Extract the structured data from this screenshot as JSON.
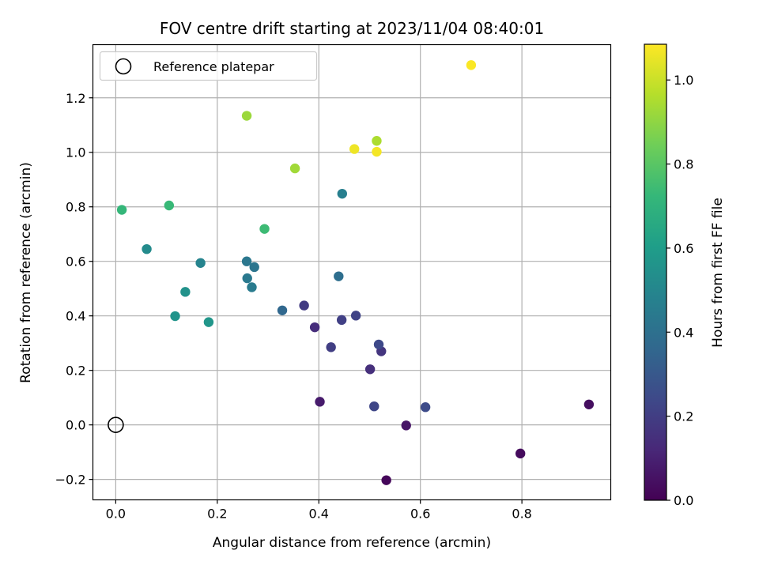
{
  "chart_data": {
    "type": "scatter",
    "title": "FOV centre drift starting at 2023/11/04 08:40:01",
    "xlabel": "Angular distance from reference (arcmin)",
    "ylabel": "Rotation from reference (arcmin)",
    "xlim": [
      -0.045,
      0.975
    ],
    "ylim": [
      -0.275,
      1.395
    ],
    "xticks": [
      0.0,
      0.2,
      0.4,
      0.6,
      0.8
    ],
    "xtick_labels": [
      "0.0",
      "0.2",
      "0.4",
      "0.6",
      "0.8"
    ],
    "yticks": [
      -0.2,
      0.0,
      0.2,
      0.4,
      0.6,
      0.8,
      1.0,
      1.2
    ],
    "ytick_labels": [
      "−0.2",
      "0.0",
      "0.2",
      "0.4",
      "0.6",
      "0.8",
      "1.0",
      "1.2"
    ],
    "grid": true,
    "legend": {
      "location": "upper-left",
      "entries": [
        {
          "label": "Reference platepar",
          "marker": "hollow-circle"
        }
      ]
    },
    "reference_point": {
      "x": 0.0,
      "y": 0.0
    },
    "colorbar": {
      "label": "Hours from first FF file",
      "colormap": "viridis",
      "range": [
        0.0,
        1.085
      ],
      "ticks": [
        0.0,
        0.2,
        0.4,
        0.6,
        0.8,
        1.0
      ],
      "tick_labels": [
        "0.0",
        "0.2",
        "0.4",
        "0.6",
        "0.8",
        "1.0"
      ]
    },
    "colormap_stops": [
      "#440154",
      "#482878",
      "#3e4989",
      "#31688e",
      "#26828e",
      "#1f9e89",
      "#35b779",
      "#6ece58",
      "#b5de2b",
      "#fde725"
    ],
    "points": [
      {
        "x": 0.533,
        "y": -0.203,
        "hours": 0.02
      },
      {
        "x": 0.797,
        "y": -0.105,
        "hours": 0.03
      },
      {
        "x": 0.932,
        "y": 0.075,
        "hours": 0.04
      },
      {
        "x": 0.572,
        "y": -0.002,
        "hours": 0.06
      },
      {
        "x": 0.402,
        "y": 0.085,
        "hours": 0.08
      },
      {
        "x": 0.392,
        "y": 0.358,
        "hours": 0.14
      },
      {
        "x": 0.501,
        "y": 0.204,
        "hours": 0.15
      },
      {
        "x": 0.523,
        "y": 0.27,
        "hours": 0.17
      },
      {
        "x": 0.371,
        "y": 0.438,
        "hours": 0.19
      },
      {
        "x": 0.424,
        "y": 0.285,
        "hours": 0.2
      },
      {
        "x": 0.445,
        "y": 0.385,
        "hours": 0.21
      },
      {
        "x": 0.473,
        "y": 0.401,
        "hours": 0.22
      },
      {
        "x": 0.509,
        "y": 0.068,
        "hours": 0.23
      },
      {
        "x": 0.518,
        "y": 0.295,
        "hours": 0.24
      },
      {
        "x": 0.61,
        "y": 0.065,
        "hours": 0.25
      },
      {
        "x": 0.328,
        "y": 0.42,
        "hours": 0.36
      },
      {
        "x": 0.439,
        "y": 0.545,
        "hours": 0.39
      },
      {
        "x": 0.273,
        "y": 0.579,
        "hours": 0.42
      },
      {
        "x": 0.258,
        "y": 0.6,
        "hours": 0.43
      },
      {
        "x": 0.259,
        "y": 0.538,
        "hours": 0.44
      },
      {
        "x": 0.268,
        "y": 0.505,
        "hours": 0.45
      },
      {
        "x": 0.446,
        "y": 0.848,
        "hours": 0.47
      },
      {
        "x": 0.167,
        "y": 0.594,
        "hours": 0.49
      },
      {
        "x": 0.061,
        "y": 0.645,
        "hours": 0.52
      },
      {
        "x": 0.137,
        "y": 0.488,
        "hours": 0.55
      },
      {
        "x": 0.117,
        "y": 0.399,
        "hours": 0.56
      },
      {
        "x": 0.183,
        "y": 0.377,
        "hours": 0.57
      },
      {
        "x": 0.012,
        "y": 0.789,
        "hours": 0.72
      },
      {
        "x": 0.105,
        "y": 0.805,
        "hours": 0.73
      },
      {
        "x": 0.293,
        "y": 0.719,
        "hours": 0.74
      },
      {
        "x": 0.258,
        "y": 1.134,
        "hours": 0.92
      },
      {
        "x": 0.353,
        "y": 0.941,
        "hours": 0.93
      },
      {
        "x": 0.514,
        "y": 1.042,
        "hours": 0.95
      },
      {
        "x": 0.47,
        "y": 1.012,
        "hours": 1.06
      },
      {
        "x": 0.514,
        "y": 1.002,
        "hours": 1.07
      },
      {
        "x": 0.7,
        "y": 1.32,
        "hours": 1.08
      }
    ]
  }
}
